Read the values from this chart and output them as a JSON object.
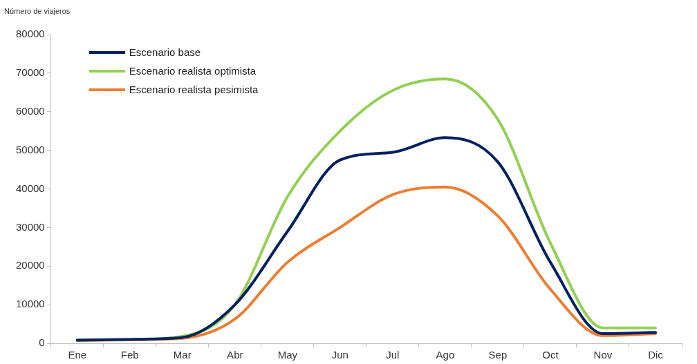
{
  "chart_data": {
    "type": "line",
    "ylabel": "Número de viajeros",
    "categories": [
      "Ene",
      "Feb",
      "Mar",
      "Abr",
      "May",
      "Jun",
      "Jul",
      "Ago",
      "Sep",
      "Oct",
      "Nov",
      "Dic"
    ],
    "series": [
      {
        "name": "Escenario base",
        "color": "#002060",
        "values": [
          800,
          1000,
          1500,
          10000,
          29000,
          47500,
          49500,
          53300,
          47000,
          21000,
          2500,
          2800
        ]
      },
      {
        "name": "Escenario realista optimista",
        "color": "#92d050",
        "values": [
          800,
          1000,
          1800,
          10000,
          38000,
          55000,
          65500,
          68500,
          58000,
          26000,
          4000,
          4000
        ]
      },
      {
        "name": "Escenario realista pesimista",
        "color": "#ed7d31",
        "values": [
          700,
          900,
          1300,
          6300,
          21000,
          30000,
          38500,
          40500,
          33000,
          14000,
          2000,
          2500
        ]
      }
    ],
    "ylim": [
      0,
      80000
    ],
    "yticks": [
      0,
      10000,
      20000,
      30000,
      40000,
      50000,
      60000,
      70000,
      80000
    ],
    "grid": false,
    "legend": "top left",
    "marker": "none",
    "line_style": "solid"
  }
}
